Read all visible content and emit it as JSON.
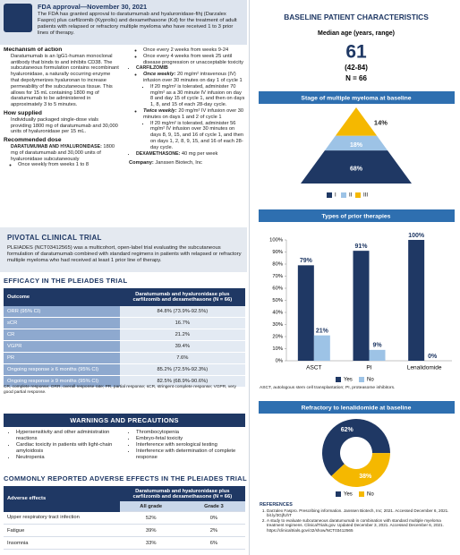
{
  "fda": {
    "title": "FDA approval—November 30, 2021",
    "text": "The FDA has granted approval to daratumumab and hyaluronidase-fihj (Darzalex Faspro) plus carfilzomib (Kyprolis) and dexamethasone (Kd) for the treatment of adult patients with relapsed or refractory multiple myeloma who have received 1 to 3 prior lines of therapy."
  },
  "mechanism": {
    "heading": "Mechanism of action",
    "items": [
      "Daratumumab is an IgG1-human monoclonal antibody that binds to and inhibits CD38. The subcutaneous formulation contains recombinant hyaluronidase, a naturally occurring enzyme that depolymerizes hyaluronan to increase permeability of the subcutaneous tissue. This allows for 15 mL containing 1800 mg of daratumumab to be administered in approximately 3 to 5 minutes."
    ]
  },
  "supplied": {
    "heading": "How supplied",
    "items": [
      "Individually packaged single-dose vials providing 1800 mg of daratumumab and 30,000 units of hyaluronidase per 15 mL."
    ]
  },
  "dose": {
    "heading": "Recommended dose",
    "daratumumab": {
      "lead": "DARATUMUMAB AND HYALURONIDASE:",
      "text": "1800 mg of daratumumab and 30,000 units of hyaluronidase subcutaneously",
      "subitems": [
        "Once weekly from weeks 1 to 8",
        "Once every 2 weeks from weeks 9-24",
        "Once every 4 weeks from week 25 until disease progression or unacceptable toxicity"
      ]
    },
    "carfilzomib": {
      "lead": "CARFILZOMIB",
      "regimens": [
        {
          "lead": "Once weekly:",
          "text": "20 mg/m² intravenous (IV) infusion over 30 minutes on day 1 of cycle 1",
          "subitems": [
            "If 20 mg/m² is tolerated, administer 70 mg/m² as a 30 minute IV infusion on day 8 and day 15 of cycle 1, and then on days 1, 8, and 15 of each 28-day cycle."
          ]
        },
        {
          "lead": "Twice weekly:",
          "text": "20 mg/m² IV infusion over 30 minutes on days 1 and 2 of cycle 1",
          "subitems": [
            "If 20 mg/m² is tolerated, administer 56 mg/m² IV infusion over 30 minutes on days 8, 9, 15, and 16 of cycle 1, and then on days 1, 2, 8, 9, 15, and 16 of each 28-day cycle."
          ]
        }
      ]
    },
    "dexamethasone": {
      "lead": "DEXAMETHASONE:",
      "text": "40 mg per week"
    }
  },
  "company": {
    "lead": "Company:",
    "text": "Janssen Biotech, Inc"
  },
  "pivotal": {
    "title": "PIVOTAL CLINICAL TRIAL",
    "text": "PLEIADES (NCT03412565) was a multicohort, open-label trial evaluating the subcutaneous formulation of daratumumab combined with standard regimens in patients with relapsed or refractory multiple myeloma who had received at least 1 prior line of therapy."
  },
  "efficacy": {
    "title": "EFFICACY IN THE PLEIADES TRIAL",
    "header": [
      "Outcome",
      "Daratumumab and hyaluronidase plus carfilzomib and dexamethasone (N = 66)"
    ],
    "rows": [
      [
        "ORR (95% CI)",
        "84.8% (73.9%-92.5%)"
      ],
      [
        "sCR",
        "16.7%"
      ],
      [
        "CR",
        "21.2%"
      ],
      [
        "VGPR",
        "39.4%"
      ],
      [
        "PR",
        "7.6%"
      ],
      [
        "Ongoing response ≥ 6 months (95% CI)",
        "85.2% (72.5%-92.3%)"
      ],
      [
        "Ongoing response ≥ 9 months (95% CI)",
        "82.5% (68.9%-90.6%)"
      ]
    ],
    "note": "CR, complete response; ORR, overall response rate; PR, partial response; sCR, stringent complete response; VGPR, very good partial response."
  },
  "warnings": {
    "title": "WARNINGS AND PRECAUTIONS",
    "items": [
      "Hypersensitivity and other administration reactions",
      "Cardiac toxicity in patients with light-chain amyloidosis",
      "Neutropenia",
      "Thrombocytopenia",
      "Embryo-fetal toxicity",
      "Interference with serological testing",
      "Interference with determination of complete response"
    ]
  },
  "adverse": {
    "title": "COMMONLY REPORTED ADVERSE EFFECTS IN THE PLEIADES TRIAL",
    "header": [
      "Adverse effects",
      "Daratumumab and hyaluronidase plus carfilzomib and dexamethasone (N = 66)"
    ],
    "subheader": [
      "All grade",
      "Grade 3"
    ],
    "rows": [
      [
        "Upper respiratory tract infection",
        "52%",
        "0%"
      ],
      [
        "Fatigue",
        "39%",
        "2%"
      ],
      [
        "Insomnia",
        "33%",
        "6%"
      ]
    ]
  },
  "baseline": {
    "title": "BASELINE PATIENT CHARACTERISTICS",
    "age_label": "Median age (years, range)",
    "median": "61",
    "range": "(42-84)",
    "n": "N = 66"
  },
  "stage": {
    "type": "pyramid",
    "title": "Stage of multiple myeloma at baseline",
    "categories": [
      "I",
      "II",
      "III"
    ],
    "values": [
      68,
      18,
      14
    ],
    "value_labels": [
      "68%",
      "18%",
      "14%"
    ],
    "colors": [
      "#1f3864",
      "#9dc3e6",
      "#f5b800"
    ]
  },
  "therapies": {
    "type": "bar",
    "title": "Types of prior therapies",
    "categories": [
      "ASCT",
      "PI",
      "Lenalidomide"
    ],
    "series": [
      {
        "name": "Yes",
        "color": "#1f3864",
        "values": [
          79,
          91,
          100
        ],
        "value_labels": [
          "79%",
          "91%",
          "100%"
        ]
      },
      {
        "name": "No",
        "color": "#9dc3e6",
        "values": [
          21,
          9,
          0
        ],
        "value_labels": [
          "21%",
          "9%",
          "0%"
        ]
      }
    ],
    "ylim": [
      0,
      100
    ],
    "yticks": [
      {
        "value": 0,
        "label": "0%"
      },
      {
        "value": 10,
        "label": "10%"
      },
      {
        "value": 20,
        "label": "20%"
      },
      {
        "value": 30,
        "label": "30%"
      },
      {
        "value": 40,
        "label": "40%"
      },
      {
        "value": 50,
        "label": "50%"
      },
      {
        "value": 60,
        "label": "60%"
      },
      {
        "value": 70,
        "label": "70%"
      },
      {
        "value": 80,
        "label": "80%"
      },
      {
        "value": 90,
        "label": "90%"
      },
      {
        "value": 100,
        "label": "100%"
      }
    ],
    "note": "ASCT, autologous stem cell transplantation; PI, proteasome inhibitors."
  },
  "refractory": {
    "type": "donut",
    "title": "Refractory to lenalidomide at baseline",
    "categories": [
      "Yes",
      "No"
    ],
    "values": [
      62,
      38
    ],
    "value_labels": [
      "62%",
      "38%"
    ],
    "colors": [
      "#1f3864",
      "#f5b800"
    ]
  },
  "references": {
    "title": "REFERENCES",
    "items": [
      "Darzalex Faspro. Prescribing information. Janssen Biotech, Inc; 2021. Accessed December 6, 2021. bit.ly/3GjfUhT",
      "A study to evaluate subcutaneous daratumumab in combination with standard multiple myeloma treatment regimens. ClinicalTrials.gov. Updated December 3, 2021. Accessed December 6, 2021. https://clinicaltrials.gov/ct2/show/NCT03412565"
    ]
  }
}
